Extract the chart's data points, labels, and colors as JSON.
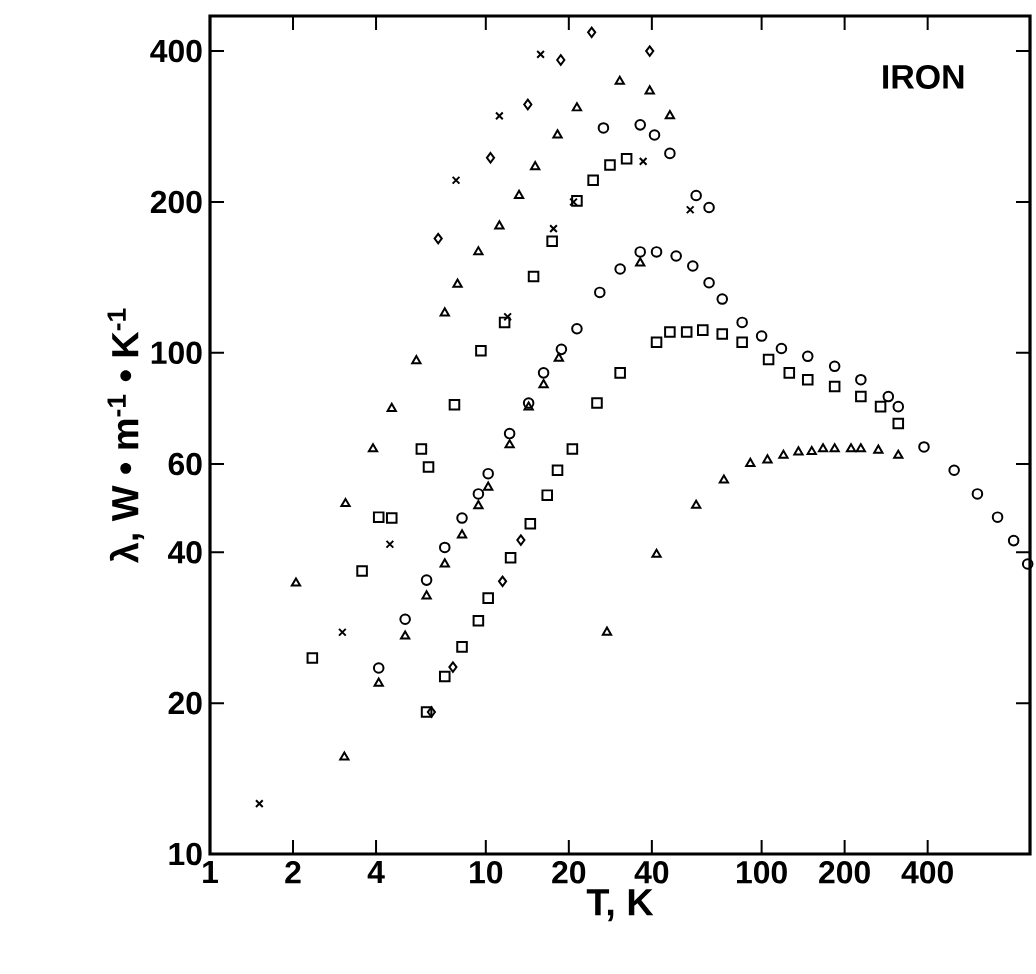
{
  "chart_data": {
    "type": "scatter",
    "xlabel": "T, K",
    "ylabel": "λ, W • m$^{-1}$ • K$^{-1}$",
    "annotations": [
      "IRON"
    ],
    "log": "xy",
    "xlim": [
      1,
      940
    ],
    "ylim": [
      10,
      470
    ],
    "xticks": [
      1,
      2,
      4,
      10,
      20,
      40,
      100,
      200,
      400
    ],
    "yticks": [
      10,
      20,
      40,
      60,
      100,
      200,
      400
    ],
    "series": [
      {
        "color": "#000000",
        "marker": "cross",
        "x": [
          7.8,
          11.2,
          15.8
        ],
        "values": [
          221,
          297,
          394
        ]
      },
      {
        "color": "#000000",
        "marker": "diamond",
        "x": [
          6.72,
          10.4,
          14.2,
          18.7,
          24.2,
          39.3
        ],
        "values": [
          169,
          245,
          313,
          384,
          436,
          400
        ]
      },
      {
        "color": "#000000",
        "marker": "triangle",
        "x": [
          2.05,
          3.1,
          3.9,
          4.56,
          5.6,
          7.1,
          7.9,
          9.4,
          11.2,
          13.2,
          15.1,
          18.2,
          21.4,
          30.6,
          39.3,
          46.5
        ],
        "values": [
          34.7,
          50,
          64.3,
          77.4,
          96.4,
          120,
          137,
          159,
          179,
          206,
          235,
          272,
          308,
          348,
          333,
          297
        ]
      },
      {
        "color": "#000000",
        "marker": "square",
        "x": [
          2.35,
          3.56,
          4.09,
          4.56,
          5.84,
          6.2,
          7.7,
          9.6,
          11.7,
          14.9,
          17.4,
          21.4,
          24.5,
          28.2,
          32.4
        ],
        "values": [
          24.6,
          36.7,
          47,
          46.8,
          64.3,
          59.2,
          78.8,
          101,
          115,
          142,
          167,
          201,
          221,
          237,
          244
        ]
      },
      {
        "color": "#000000",
        "marker": "cross",
        "x": [
          1.51,
          3.02,
          4.49,
          12,
          17.6,
          20.8,
          37.2,
          55.1
        ],
        "values": [
          12.6,
          27.7,
          41.5,
          118,
          177,
          200,
          241,
          193
        ]
      },
      {
        "color": "#000000",
        "marker": "circle",
        "x": [
          4.09,
          5.1,
          6.1,
          7.1,
          8.2,
          9.4,
          10.2,
          12.2,
          14.3,
          16.2,
          18.8,
          21.4,
          25.9,
          30.7,
          36.3,
          41.6,
          49,
          56.3,
          64.5,
          72,
          85,
          100,
          118,
          147,
          184,
          229,
          288,
          313,
          388,
          499,
          606,
          717,
          820,
          922
        ],
        "values": [
          23.5,
          29.4,
          35.2,
          40.9,
          46.8,
          52.3,
          57.4,
          69,
          79.4,
          91.2,
          101.6,
          111.7,
          132,
          147,
          159,
          159,
          156,
          149,
          138,
          128,
          115,
          108,
          102,
          98.4,
          94,
          88.4,
          81.8,
          78.1,
          64.9,
          58.3,
          52.3,
          47,
          42.2,
          37.9
        ]
      },
      {
        "color": "#000000",
        "marker": "triangle",
        "x": [
          3.07,
          4.09,
          5.1,
          6.1,
          7.1,
          8.2,
          9.4,
          10.2,
          12.2,
          14.3,
          16.2,
          18.4,
          36.3
        ],
        "values": [
          15.6,
          21.9,
          27.2,
          32.7,
          37.9,
          43.3,
          49.5,
          53.9,
          65.5,
          77.9,
          86.3,
          97.5,
          151
        ]
      },
      {
        "color": "#000000",
        "marker": "square",
        "x": [
          6.1,
          7.1,
          8.2,
          9.4,
          10.2,
          12.3,
          14.5,
          16.7,
          18.2,
          20.6,
          25.3,
          30.7,
          41.6,
          46.5,
          53.5,
          61.2,
          72,
          85,
          106,
          126,
          147,
          184,
          229,
          270,
          313
        ],
        "values": [
          19.2,
          22.6,
          25.9,
          29.2,
          32.4,
          39,
          45.6,
          52,
          58.3,
          64.3,
          79.4,
          91.2,
          105,
          110,
          110,
          111,
          109,
          105,
          97,
          91.2,
          88.4,
          85.7,
          81.8,
          78.1,
          72.3
        ]
      },
      {
        "color": "#000000",
        "marker": "diamond",
        "x": [
          6.35,
          7.6,
          11.5,
          13.4
        ],
        "values": [
          19.2,
          23.6,
          35,
          42.3
        ]
      },
      {
        "color": "#000000",
        "marker": "triangle",
        "x": [
          27.5,
          41.6,
          57.9,
          73,
          91,
          105,
          120,
          136,
          152,
          167,
          184,
          211,
          229,
          265,
          313
        ],
        "values": [
          27.7,
          39.6,
          49.6,
          55.7,
          60.1,
          61.1,
          62.4,
          63.4,
          63.5,
          64.3,
          64.3,
          64.3,
          64.3,
          63.9,
          62.4
        ]
      },
      {
        "color": "#000000",
        "marker": "circle",
        "x": [
          26.7,
          36.3,
          40.9,
          46.5,
          57.9,
          64.5
        ],
        "values": [
          281,
          285,
          272,
          250,
          206,
          195
        ]
      }
    ]
  }
}
